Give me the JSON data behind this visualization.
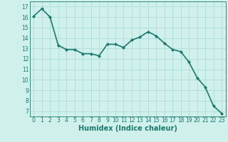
{
  "x": [
    0,
    1,
    2,
    3,
    4,
    5,
    6,
    7,
    8,
    9,
    10,
    11,
    12,
    13,
    14,
    15,
    16,
    17,
    18,
    19,
    20,
    21,
    22,
    23
  ],
  "y": [
    16.1,
    16.8,
    16.0,
    13.3,
    12.9,
    12.9,
    12.5,
    12.5,
    12.3,
    13.4,
    13.4,
    13.1,
    13.8,
    14.1,
    14.6,
    14.2,
    13.5,
    12.9,
    12.7,
    11.7,
    10.2,
    9.3,
    7.5,
    6.8
  ],
  "line_color": "#1a7a6e",
  "marker": "D",
  "marker_size": 2,
  "bg_color": "#cff0eb",
  "grid_color": "#aaddd6",
  "tick_color": "#1a7a6e",
  "xlabel": "Humidex (Indice chaleur)",
  "xlabel_fontsize": 7,
  "ylim": [
    6.5,
    17.5
  ],
  "xlim": [
    -0.5,
    23.5
  ],
  "yticks": [
    7,
    8,
    9,
    10,
    11,
    12,
    13,
    14,
    15,
    16,
    17
  ],
  "xticks": [
    0,
    1,
    2,
    3,
    4,
    5,
    6,
    7,
    8,
    9,
    10,
    11,
    12,
    13,
    14,
    15,
    16,
    17,
    18,
    19,
    20,
    21,
    22,
    23
  ],
  "tick_fontsize": 5.5,
  "linewidth": 1.2
}
